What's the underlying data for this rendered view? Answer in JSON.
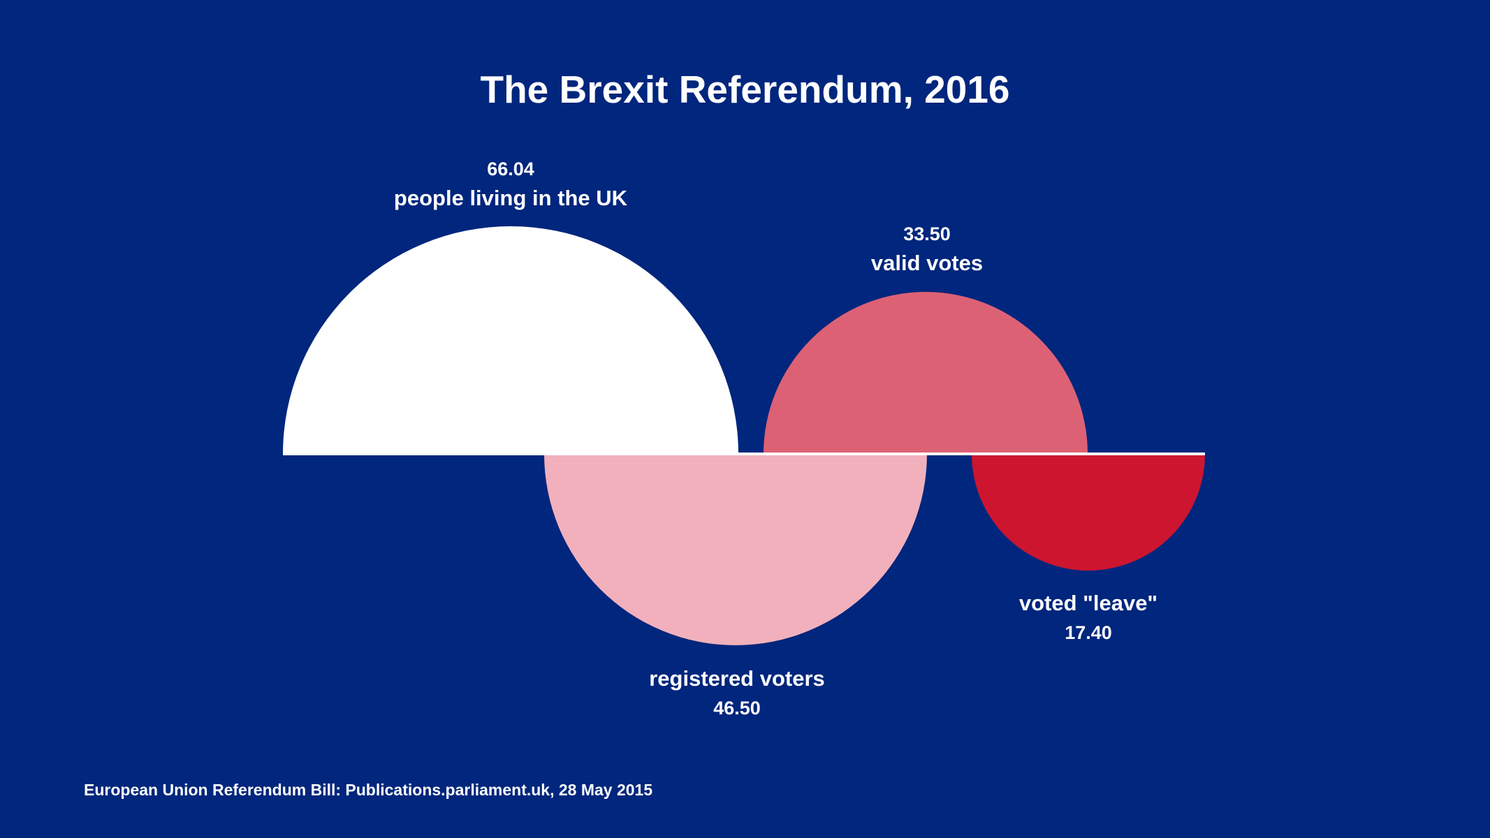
{
  "page": {
    "background_color": "#00267d",
    "text_color": "#ffffff"
  },
  "title": "The Brexit Referendum, 2016",
  "source_note": "European Union Referendum Bill: Publications.parliament.uk, 28 May 2015",
  "chart_data": {
    "type": "pie",
    "subtype": "proportional-semicircle-area",
    "title": "The Brexit Referendum, 2016",
    "background": "#00267d",
    "baseline": {
      "color": "#ffffff",
      "orientation": "horizontal"
    },
    "legend_position": "none",
    "grid": false,
    "segments": [
      {
        "label": "people living in the UK",
        "value": 66.04,
        "value_label": "66.04",
        "side": "above",
        "color": "#ffffff"
      },
      {
        "label": "registered voters",
        "value": 46.5,
        "value_label": "46.50",
        "side": "below",
        "color": "#f2b0bc"
      },
      {
        "label": "valid votes",
        "value": 33.5,
        "value_label": "33.50",
        "side": "above",
        "color": "#dd6175"
      },
      {
        "label": "voted \"leave\"",
        "value": 17.4,
        "value_label": "17.40",
        "side": "below",
        "color": "#cd1530"
      }
    ],
    "source": "European Union Referendum Bill: Publications.parliament.uk, 28 May 2015"
  }
}
